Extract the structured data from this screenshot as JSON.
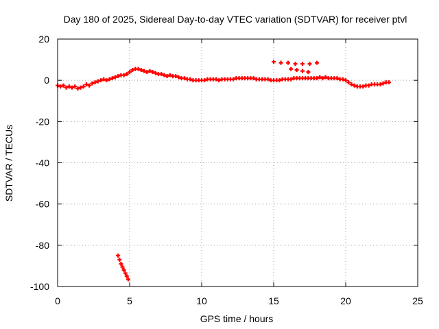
{
  "chart_data": {
    "type": "scatter",
    "title": "Day 180 of 2025, Sidereal Day-to-day VTEC variation (SDTVAR) for receiver ptvl",
    "xlabel": "GPS time / hours",
    "ylabel": "SDTVAR / TECUs",
    "xlim": [
      0,
      25
    ],
    "ylim": [
      -100,
      20
    ],
    "xticks": [
      "0",
      "5",
      "10",
      "15",
      "20",
      "25"
    ],
    "yticks": [
      "-100",
      "-80",
      "-60",
      "-40",
      "-20",
      "0",
      "20"
    ],
    "grid": true,
    "series": [
      {
        "color": "#ff0000",
        "values": [
          [
            0.0,
            -2.5
          ],
          [
            0.2,
            -3
          ],
          [
            0.4,
            -2.5
          ],
          [
            0.6,
            -3.5
          ],
          [
            0.8,
            -3
          ],
          [
            1.0,
            -3.5
          ],
          [
            1.2,
            -3
          ],
          [
            1.4,
            -4
          ],
          [
            1.6,
            -3.5
          ],
          [
            1.8,
            -3
          ],
          [
            2.0,
            -2
          ],
          [
            2.2,
            -2.5
          ],
          [
            2.4,
            -1.5
          ],
          [
            2.6,
            -1
          ],
          [
            2.8,
            -0.5
          ],
          [
            3.0,
            0
          ],
          [
            3.2,
            0.5
          ],
          [
            3.4,
            0
          ],
          [
            3.6,
            0.5
          ],
          [
            3.8,
            1
          ],
          [
            4.0,
            1.5
          ],
          [
            4.2,
            2
          ],
          [
            4.4,
            2.5
          ],
          [
            4.6,
            2.5
          ],
          [
            4.8,
            3
          ],
          [
            5.0,
            4
          ],
          [
            5.2,
            5
          ],
          [
            5.4,
            5.5
          ],
          [
            5.6,
            5.5
          ],
          [
            5.8,
            5
          ],
          [
            6.0,
            4.5
          ],
          [
            6.2,
            4
          ],
          [
            6.4,
            4.5
          ],
          [
            6.6,
            4
          ],
          [
            6.8,
            3.5
          ],
          [
            7.0,
            3
          ],
          [
            7.2,
            3
          ],
          [
            7.4,
            2.5
          ],
          [
            7.6,
            2
          ],
          [
            7.8,
            2.5
          ],
          [
            8.0,
            2
          ],
          [
            8.2,
            2
          ],
          [
            8.4,
            1.5
          ],
          [
            8.6,
            1
          ],
          [
            8.8,
            1
          ],
          [
            9.0,
            0.5
          ],
          [
            9.2,
            0.5
          ],
          [
            9.4,
            0
          ],
          [
            9.6,
            0
          ],
          [
            9.8,
            0
          ],
          [
            10.0,
            0
          ],
          [
            10.2,
            0
          ],
          [
            10.4,
            0.5
          ],
          [
            10.6,
            0.5
          ],
          [
            10.8,
            0.5
          ],
          [
            11.0,
            0.5
          ],
          [
            11.2,
            0
          ],
          [
            11.4,
            0.5
          ],
          [
            11.6,
            0.5
          ],
          [
            11.8,
            0.5
          ],
          [
            12.0,
            0.5
          ],
          [
            12.2,
            0.5
          ],
          [
            12.4,
            1
          ],
          [
            12.6,
            1
          ],
          [
            12.8,
            1
          ],
          [
            13.0,
            1
          ],
          [
            13.2,
            1
          ],
          [
            13.4,
            1
          ],
          [
            13.6,
            1
          ],
          [
            13.8,
            0.5
          ],
          [
            14.0,
            0.5
          ],
          [
            14.2,
            0.5
          ],
          [
            14.4,
            0.5
          ],
          [
            14.6,
            0.5
          ],
          [
            14.8,
            0
          ],
          [
            15.0,
            0
          ],
          [
            15.2,
            0
          ],
          [
            15.4,
            0
          ],
          [
            15.6,
            0.5
          ],
          [
            15.8,
            0.5
          ],
          [
            16.0,
            0.5
          ],
          [
            16.2,
            0.5
          ],
          [
            16.4,
            1
          ],
          [
            16.6,
            1
          ],
          [
            16.8,
            1
          ],
          [
            17.0,
            1
          ],
          [
            17.2,
            1
          ],
          [
            17.4,
            1
          ],
          [
            17.6,
            1
          ],
          [
            17.8,
            1
          ],
          [
            18.0,
            1
          ],
          [
            18.2,
            1.5
          ],
          [
            18.4,
            1
          ],
          [
            18.6,
            1.5
          ],
          [
            18.8,
            1
          ],
          [
            19.0,
            1
          ],
          [
            19.2,
            1
          ],
          [
            19.4,
            1
          ],
          [
            19.6,
            0.5
          ],
          [
            19.8,
            0.5
          ],
          [
            20.0,
            0
          ],
          [
            20.2,
            -1
          ],
          [
            20.4,
            -2
          ],
          [
            20.6,
            -2.5
          ],
          [
            20.8,
            -3
          ],
          [
            21.0,
            -3
          ],
          [
            21.2,
            -3
          ],
          [
            21.4,
            -2.5
          ],
          [
            21.6,
            -2.5
          ],
          [
            21.8,
            -2
          ],
          [
            22.0,
            -2
          ],
          [
            22.2,
            -2
          ],
          [
            22.4,
            -2
          ],
          [
            22.6,
            -1.5
          ],
          [
            22.8,
            -1
          ],
          [
            23.0,
            -1
          ]
        ]
      },
      {
        "color": "#ff0000",
        "values": [
          [
            4.2,
            -85
          ],
          [
            4.3,
            -87
          ],
          [
            4.4,
            -89
          ],
          [
            4.5,
            -90.5
          ],
          [
            4.6,
            -92
          ],
          [
            4.7,
            -93.5
          ],
          [
            4.8,
            -95
          ],
          [
            4.9,
            -96.5
          ]
        ]
      },
      {
        "color": "#ff0000",
        "values": [
          [
            15.0,
            9
          ],
          [
            15.5,
            8.5
          ],
          [
            16.0,
            8.5
          ],
          [
            16.5,
            8
          ],
          [
            17.0,
            8
          ],
          [
            17.5,
            8
          ],
          [
            18.0,
            8.5
          ],
          [
            16.2,
            5.5
          ],
          [
            16.6,
            5
          ],
          [
            17.0,
            4.5
          ],
          [
            17.4,
            4
          ]
        ]
      }
    ]
  }
}
